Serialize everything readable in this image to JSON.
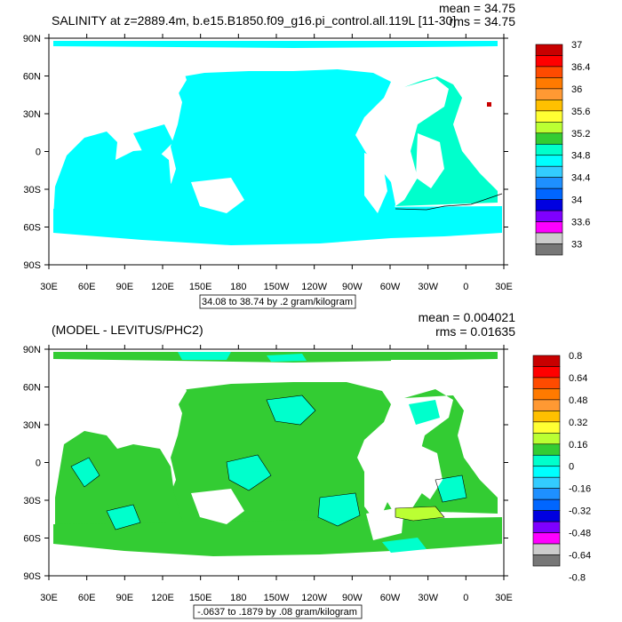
{
  "panels": [
    {
      "id": "top",
      "title": "SALINITY at z=2889.4m, b.e15.B1850.f09_g16.pi_control.all.119L [11-30]",
      "stats": [
        "mean = 34.75",
        "rms = 34.75"
      ],
      "contour_info": "34.08 to 38.74 by .2 gram/kilogram",
      "lat_labels": [
        "90N",
        "60N",
        "30N",
        "0",
        "30S",
        "60S",
        "90S"
      ],
      "lon_labels": [
        "30E",
        "60E",
        "90E",
        "120E",
        "150E",
        "180",
        "150W",
        "120W",
        "90W",
        "60W",
        "30W",
        "0",
        "30E"
      ],
      "colorbar": {
        "labels": [
          "37",
          "36.4",
          "36",
          "35.6",
          "35.2",
          "34.8",
          "34.4",
          "34",
          "33.6",
          "33"
        ],
        "colors": [
          "#c80000",
          "#ff0000",
          "#ff4b00",
          "#ff7a00",
          "#ff9933",
          "#ffc000",
          "#ffff33",
          "#bbff33",
          "#33cc33",
          "#00ffcc",
          "#00ffff",
          "#33ccff",
          "#1e90ff",
          "#0066ff",
          "#0000e0",
          "#7f00ff",
          "#ff00ff",
          "#cccccc",
          "#777777"
        ]
      }
    },
    {
      "id": "bottom",
      "title": "(MODEL - LEVITUS/PHC2)",
      "stats": [
        "mean = 0.004021",
        "rms = 0.01635"
      ],
      "contour_info": "-.0637 to .1879 by .08 gram/kilogram",
      "lat_labels": [
        "90N",
        "60N",
        "30N",
        "0",
        "30S",
        "60S",
        "90S"
      ],
      "lon_labels": [
        "30E",
        "60E",
        "90E",
        "120E",
        "150E",
        "180",
        "150W",
        "120W",
        "90W",
        "60W",
        "30W",
        "0",
        "30E"
      ],
      "colorbar": {
        "labels": [
          "0.8",
          "0.64",
          "0.48",
          "0.32",
          "0.16",
          "0",
          "-0.16",
          "-0.32",
          "-0.48",
          "-0.64",
          "-0.8"
        ],
        "colors": [
          "#c80000",
          "#ff0000",
          "#ff4b00",
          "#ff7a00",
          "#ff9933",
          "#ffc000",
          "#ffff33",
          "#bbff33",
          "#33cc33",
          "#00ffcc",
          "#00ffff",
          "#33ccff",
          "#1e90ff",
          "#0066ff",
          "#0000e0",
          "#7f00ff",
          "#ff00ff",
          "#cccccc",
          "#777777"
        ]
      }
    }
  ],
  "colors": {
    "ocean_top": "#00ffff",
    "ocean_bottom_pos": "#33cc33",
    "ocean_bottom_neg": "#00ffcc",
    "land": "#ffffff",
    "frame": "#000000"
  }
}
